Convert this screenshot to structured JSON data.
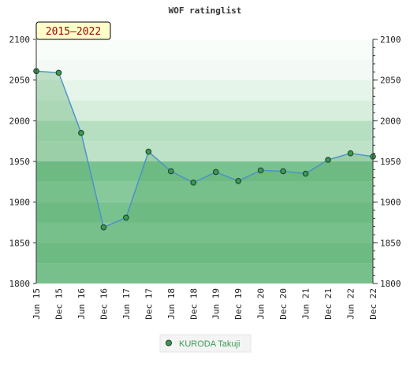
{
  "chart_data": {
    "type": "line",
    "title": "WOF ratinglist",
    "badge": "2015–2022",
    "categories": [
      "Jun 15",
      "Dec 15",
      "Jun 16",
      "Dec 16",
      "Jun 17",
      "Dec 17",
      "Jun 18",
      "Dec 18",
      "Jun 19",
      "Dec 19",
      "Jun 20",
      "Dec 20",
      "Jun 21",
      "Dec 21",
      "Jun 22",
      "Dec 22"
    ],
    "series": [
      {
        "name": "KURODA Takuji",
        "values": [
          2061,
          2059,
          1985,
          1869,
          1881,
          1962,
          1938,
          1924,
          1937,
          1926,
          1939,
          1938,
          1935,
          1952,
          1960,
          1956
        ]
      }
    ],
    "ylim": [
      1800,
      2100
    ],
    "yticks": [
      1800,
      1850,
      1900,
      1950,
      2000,
      2050,
      2100
    ],
    "ytick_labels": [
      "1800",
      "1850",
      "1900",
      "1950",
      "2000",
      "2050",
      "2100"
    ],
    "axes": {
      "left": true,
      "right": true
    },
    "legend": "bottom-center",
    "colors": {
      "line": "#4a90c8",
      "area": "#5aab6c",
      "marker": "#3a9a54",
      "badge_bg": "#ffffcc",
      "badge_text": "#990000",
      "legend_text": "#3a9a54"
    }
  }
}
